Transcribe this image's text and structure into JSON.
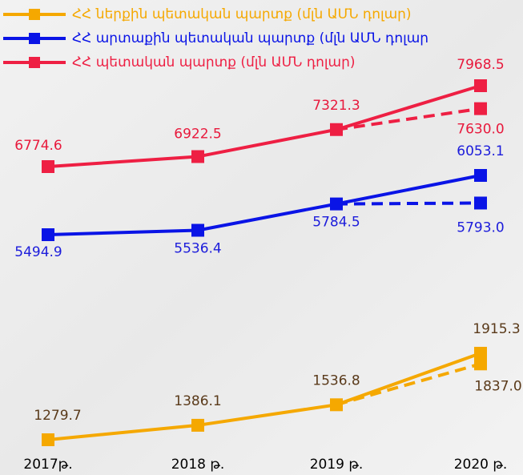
{
  "chart_data": {
    "type": "line",
    "categories": [
      "2017թ.",
      "2018 թ.",
      "2019 թ.",
      "2020 թ."
    ],
    "series": [
      {
        "name": "ՀՀ ներքին պետական պարտք (մլն ԱՄՆ դոլար)",
        "color": "#f5a800",
        "label_color": "#5a3a1a",
        "values": [
          1279.7,
          1386.1,
          1536.8,
          1915.3
        ],
        "dashed_values": [
          null,
          null,
          null,
          1837.0
        ],
        "dashed_value_labels": [
          null,
          null,
          null,
          "1837.0"
        ]
      },
      {
        "name": "ՀՀ արտաքին պետական պարտք (մլն ԱՄՆ դոլար",
        "color": "#0a14e6",
        "label_color": "#1c1cdb",
        "values": [
          5494.9,
          5536.4,
          5784.5,
          6053.1
        ],
        "dashed_values": [
          null,
          null,
          null,
          5793.0
        ],
        "dashed_value_labels": [
          null,
          null,
          null,
          "5793.0"
        ]
      },
      {
        "name": "ՀՀ պետական պարտք (մլն ԱՄՆ դոլար)",
        "color": "#ee1f43",
        "label_color": "#e8193c",
        "values": [
          6774.6,
          6922.5,
          7321.3,
          7968.5
        ],
        "dashed_values": [
          null,
          null,
          null,
          7630.0
        ],
        "dashed_value_labels": [
          null,
          null,
          null,
          "7630.0"
        ]
      }
    ]
  }
}
